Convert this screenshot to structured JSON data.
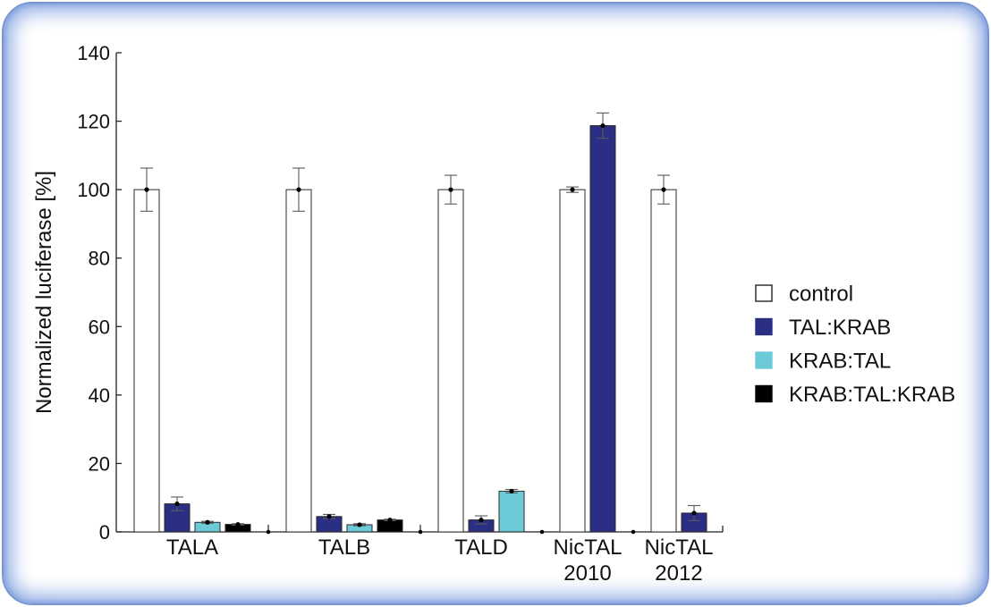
{
  "chart_data": {
    "type": "bar",
    "ylabel": "Normalized luciferase [%]",
    "ylim": [
      0,
      140
    ],
    "yticks": [
      0,
      20,
      40,
      60,
      80,
      100,
      120,
      140
    ],
    "categories": [
      [
        "TALA"
      ],
      [
        "TALB"
      ],
      [
        "TALD"
      ],
      [
        "NicTAL",
        "2010"
      ],
      [
        "NicTAL",
        "2012"
      ]
    ],
    "series": [
      {
        "name": "control",
        "color": "#ffffff",
        "values": [
          100,
          100,
          100,
          100,
          100
        ],
        "errors": [
          6.3,
          6.3,
          4.2,
          0.8,
          4.2
        ]
      },
      {
        "name": "TAL:KRAB",
        "color": "#2b2f83",
        "values": [
          8.2,
          4.5,
          3.5,
          118.7,
          5.5
        ],
        "errors": [
          2.0,
          0.6,
          1.2,
          3.7,
          2.2
        ]
      },
      {
        "name": "KRAB:TAL",
        "color": "#6dcad8",
        "values": [
          2.8,
          2.1,
          11.9,
          null,
          null
        ],
        "errors": [
          0.3,
          0.3,
          0.5,
          null,
          null
        ]
      },
      {
        "name": "KRAB:TAL:KRAB",
        "color": "#000000",
        "values": [
          2.2,
          3.5,
          null,
          null,
          null
        ],
        "errors": [
          0.2,
          0.2,
          null,
          null,
          null
        ]
      }
    ],
    "legend_position": "right",
    "grid": false
  }
}
